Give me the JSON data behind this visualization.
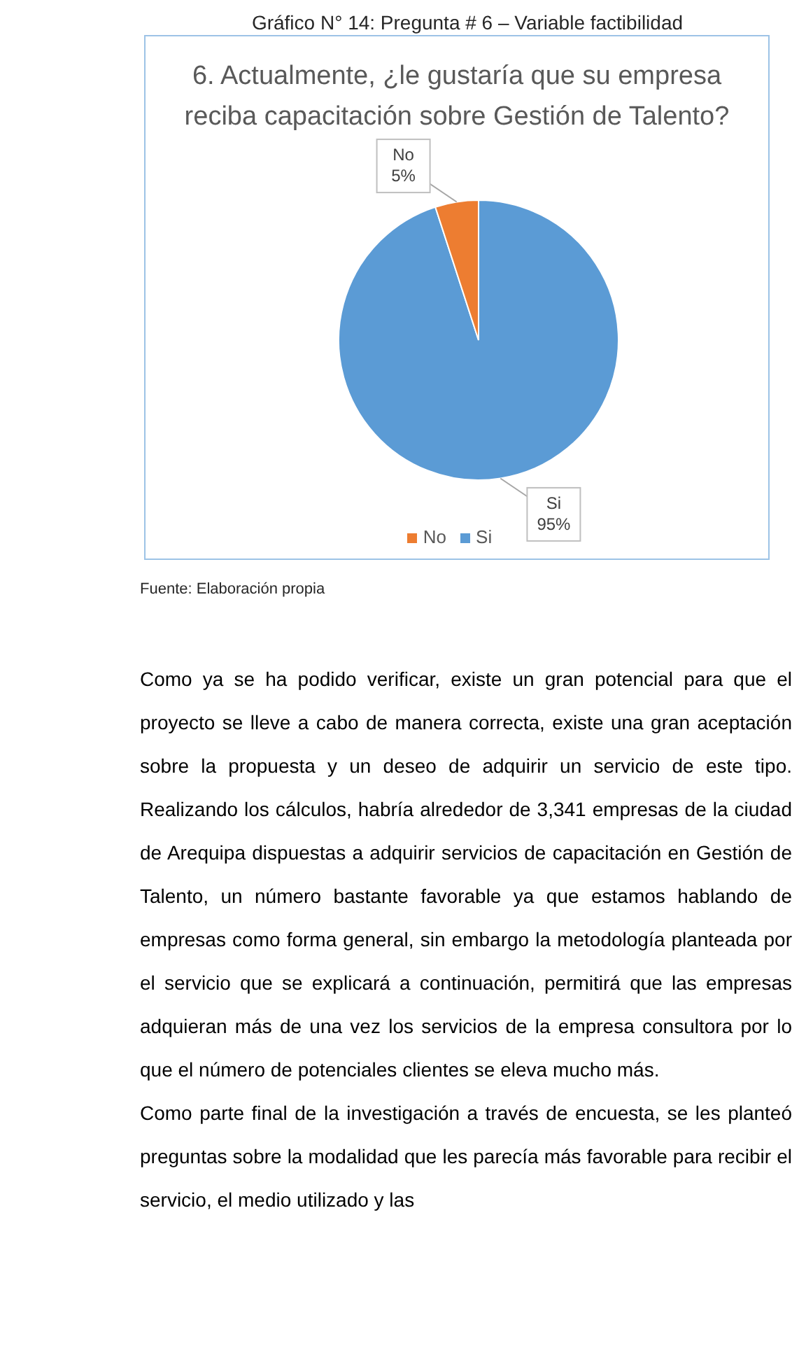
{
  "chart_data": {
    "type": "pie",
    "title": "6. Actualmente, ¿le gustaría que su empresa reciba capacitación sobre Gestión de Talento?",
    "categories": [
      "Si",
      "No"
    ],
    "values": [
      95,
      5
    ],
    "colors": [
      "#5b9bd5",
      "#ed7d31"
    ],
    "value_labels": [
      "95%",
      "5%"
    ],
    "legend": "bottom",
    "annotations": [
      "Gráfico N° 14: Pregunta # 6 – Variable factibilidad",
      "Fuente: Elaboración propia",
      "Como ya se ha podido verificar, existe un gran potencial para que el proyecto se lleve a cabo de manera correcta, existe una gran aceptación sobre la propuesta y un deseo de adquirir un servicio de este tipo. Realizando los cálculos, habría alrededor de 3,341 empresas de la ciudad de Arequipa dispuestas a adquirir servicios de capacitación en Gestión de Talento, un número bastante favorable ya que estamos hablando de empresas como forma general, sin embargo la metodología planteada por el servicio que se explicará a continuación, permitirá que las empresas adquieran más de una vez los servicios de la empresa consultora por lo que el número de potenciales clientes se eleva mucho más.",
      "Como parte final de la investigación a través de encuesta, se les planteó preguntas sobre la modalidad que les parecía más favorable para recibir el servicio, el medio utilizado y las"
    ]
  }
}
